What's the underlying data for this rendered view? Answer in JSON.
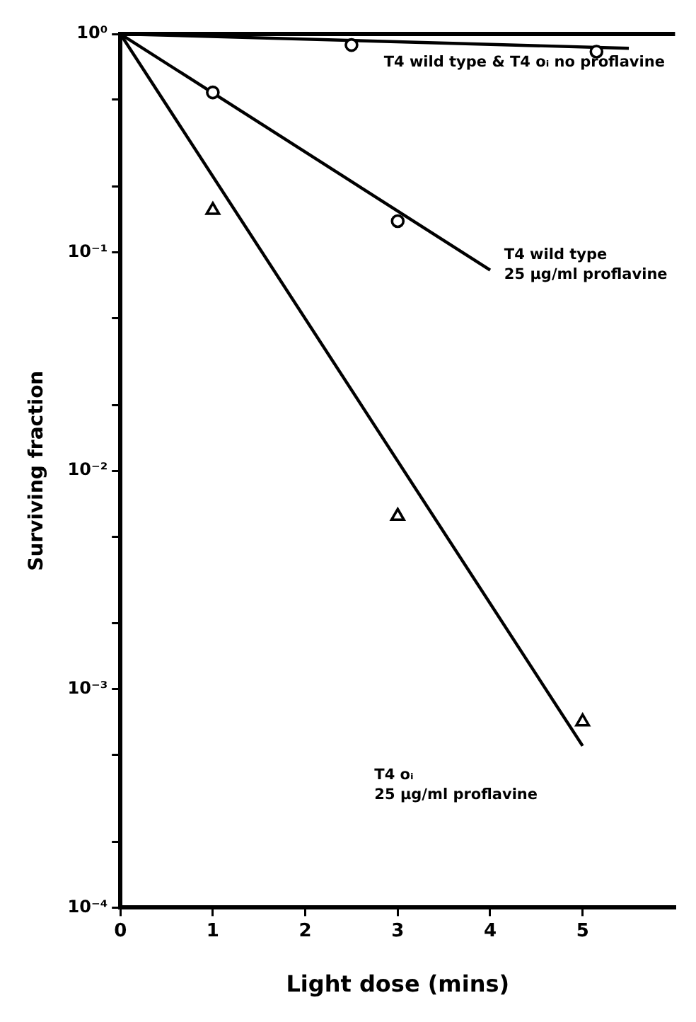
{
  "chart_data": {
    "type": "scatter",
    "xlabel": "Light dose (mins)",
    "ylabel": "Surviving fraction",
    "log": "y",
    "grid": false,
    "legend": false,
    "xlim": [
      0,
      6
    ],
    "xticks": [
      0,
      1,
      2,
      3,
      4,
      5
    ],
    "ylim": [
      0.0001,
      1
    ],
    "yticks": [
      {
        "value": 1,
        "label": "10⁰"
      },
      {
        "value": 0.5,
        "label": null
      },
      {
        "value": 0.2,
        "label": null
      },
      {
        "value": 0.1,
        "label": "10⁻¹"
      },
      {
        "value": 0.05,
        "label": null
      },
      {
        "value": 0.02,
        "label": null
      },
      {
        "value": 0.01,
        "label": "10⁻²"
      },
      {
        "value": 0.005,
        "label": null
      },
      {
        "value": 0.002,
        "label": null
      },
      {
        "value": 0.001,
        "label": "10⁻³"
      },
      {
        "value": 0.0005,
        "label": null
      },
      {
        "value": 0.0002,
        "label": null
      },
      {
        "value": 0.0001,
        "label": "10⁻⁴"
      }
    ],
    "series": [
      {
        "type": "scatter",
        "marker": "circle",
        "color": "#000000",
        "x": [
          2.5,
          5.15
        ],
        "values": [
          0.89,
          0.83
        ]
      },
      {
        "type": "line",
        "marker": "none",
        "color": "#000000",
        "x": [
          0,
          5.5
        ],
        "values": [
          1,
          0.86
        ]
      },
      {
        "type": "scatter",
        "marker": "circle",
        "color": "#000000",
        "x": [
          1,
          3
        ],
        "values": [
          0.54,
          0.139
        ]
      },
      {
        "type": "line",
        "marker": "none",
        "color": "#000000",
        "x": [
          0,
          4
        ],
        "values": [
          1,
          0.083
        ]
      },
      {
        "type": "scatter",
        "marker": "triangle",
        "color": "#000000",
        "x": [
          1,
          3,
          5
        ],
        "values": [
          0.156,
          0.0062,
          0.00071
        ]
      },
      {
        "type": "line",
        "marker": "none",
        "color": "#000000",
        "x": [
          0,
          5
        ],
        "values": [
          1,
          0.00055
        ]
      }
    ],
    "annotations": [
      "T4 wild type & T4 oᵢ no proflavine",
      "T4 wild type\n25 µg/ml proflavine",
      "T4 oᵢ\n25 µg/ml proflavine"
    ]
  }
}
